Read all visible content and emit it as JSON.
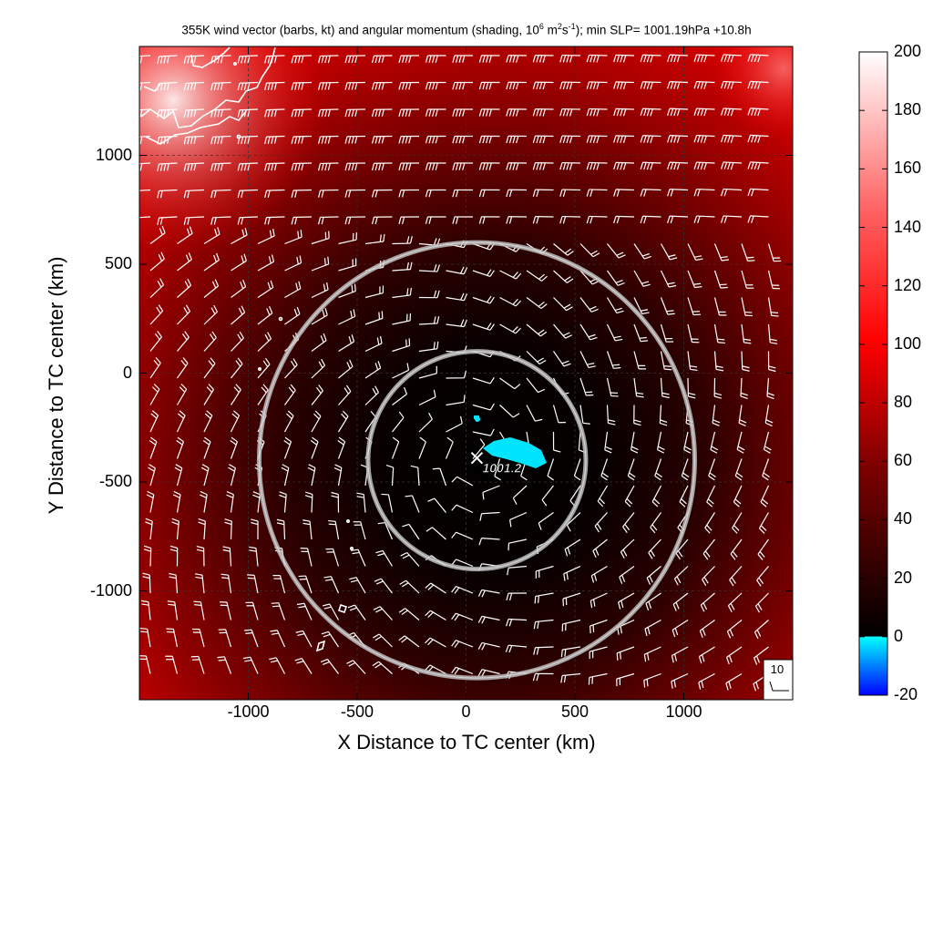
{
  "title_parts": {
    "pre": "355K wind vector (barbs, kt) and angular momentum (shading, 10",
    "exp1": "6",
    "mid": " m",
    "exp2": "2",
    "mid2": "s",
    "exp3": "-1",
    "post": "); min SLP= 1001.19hPa  +10.8h"
  },
  "chart_data": {
    "type": "heatmap",
    "title": "355K wind vector (barbs, kt) and angular momentum (shading, 10^6 m^2 s^-1); min SLP= 1001.19hPa  +10.8h",
    "xlabel": "X Distance to TC center (km)",
    "ylabel": "Y Distance to TC center (km)",
    "xlim": [
      -1500,
      1500
    ],
    "ylim": [
      -1500,
      1500
    ],
    "x_ticks": [
      "-1000",
      "-500",
      "0",
      "500",
      "1000"
    ],
    "y_ticks": [
      "1000",
      "500",
      "0",
      "-500",
      "-1000"
    ],
    "grid": true,
    "colorbar": {
      "min": -20,
      "max": 200,
      "ticks": [
        "200",
        "180",
        "160",
        "140",
        "120",
        "100",
        "80",
        "60",
        "40",
        "20",
        "0",
        "-20"
      ]
    },
    "min_slp_marker": {
      "x": 50,
      "y": -390,
      "label": "1001.2"
    },
    "circles": [
      {
        "cx": 50,
        "cy": -400,
        "r": 500
      },
      {
        "cx": 50,
        "cy": -400,
        "r": 1000
      }
    ],
    "barb_reference": "10",
    "colors": {
      "low": "#0000ff",
      "zero": "#00ffff",
      "dark": "#000000",
      "red": "#ff0000",
      "high": "#ffffff"
    }
  }
}
